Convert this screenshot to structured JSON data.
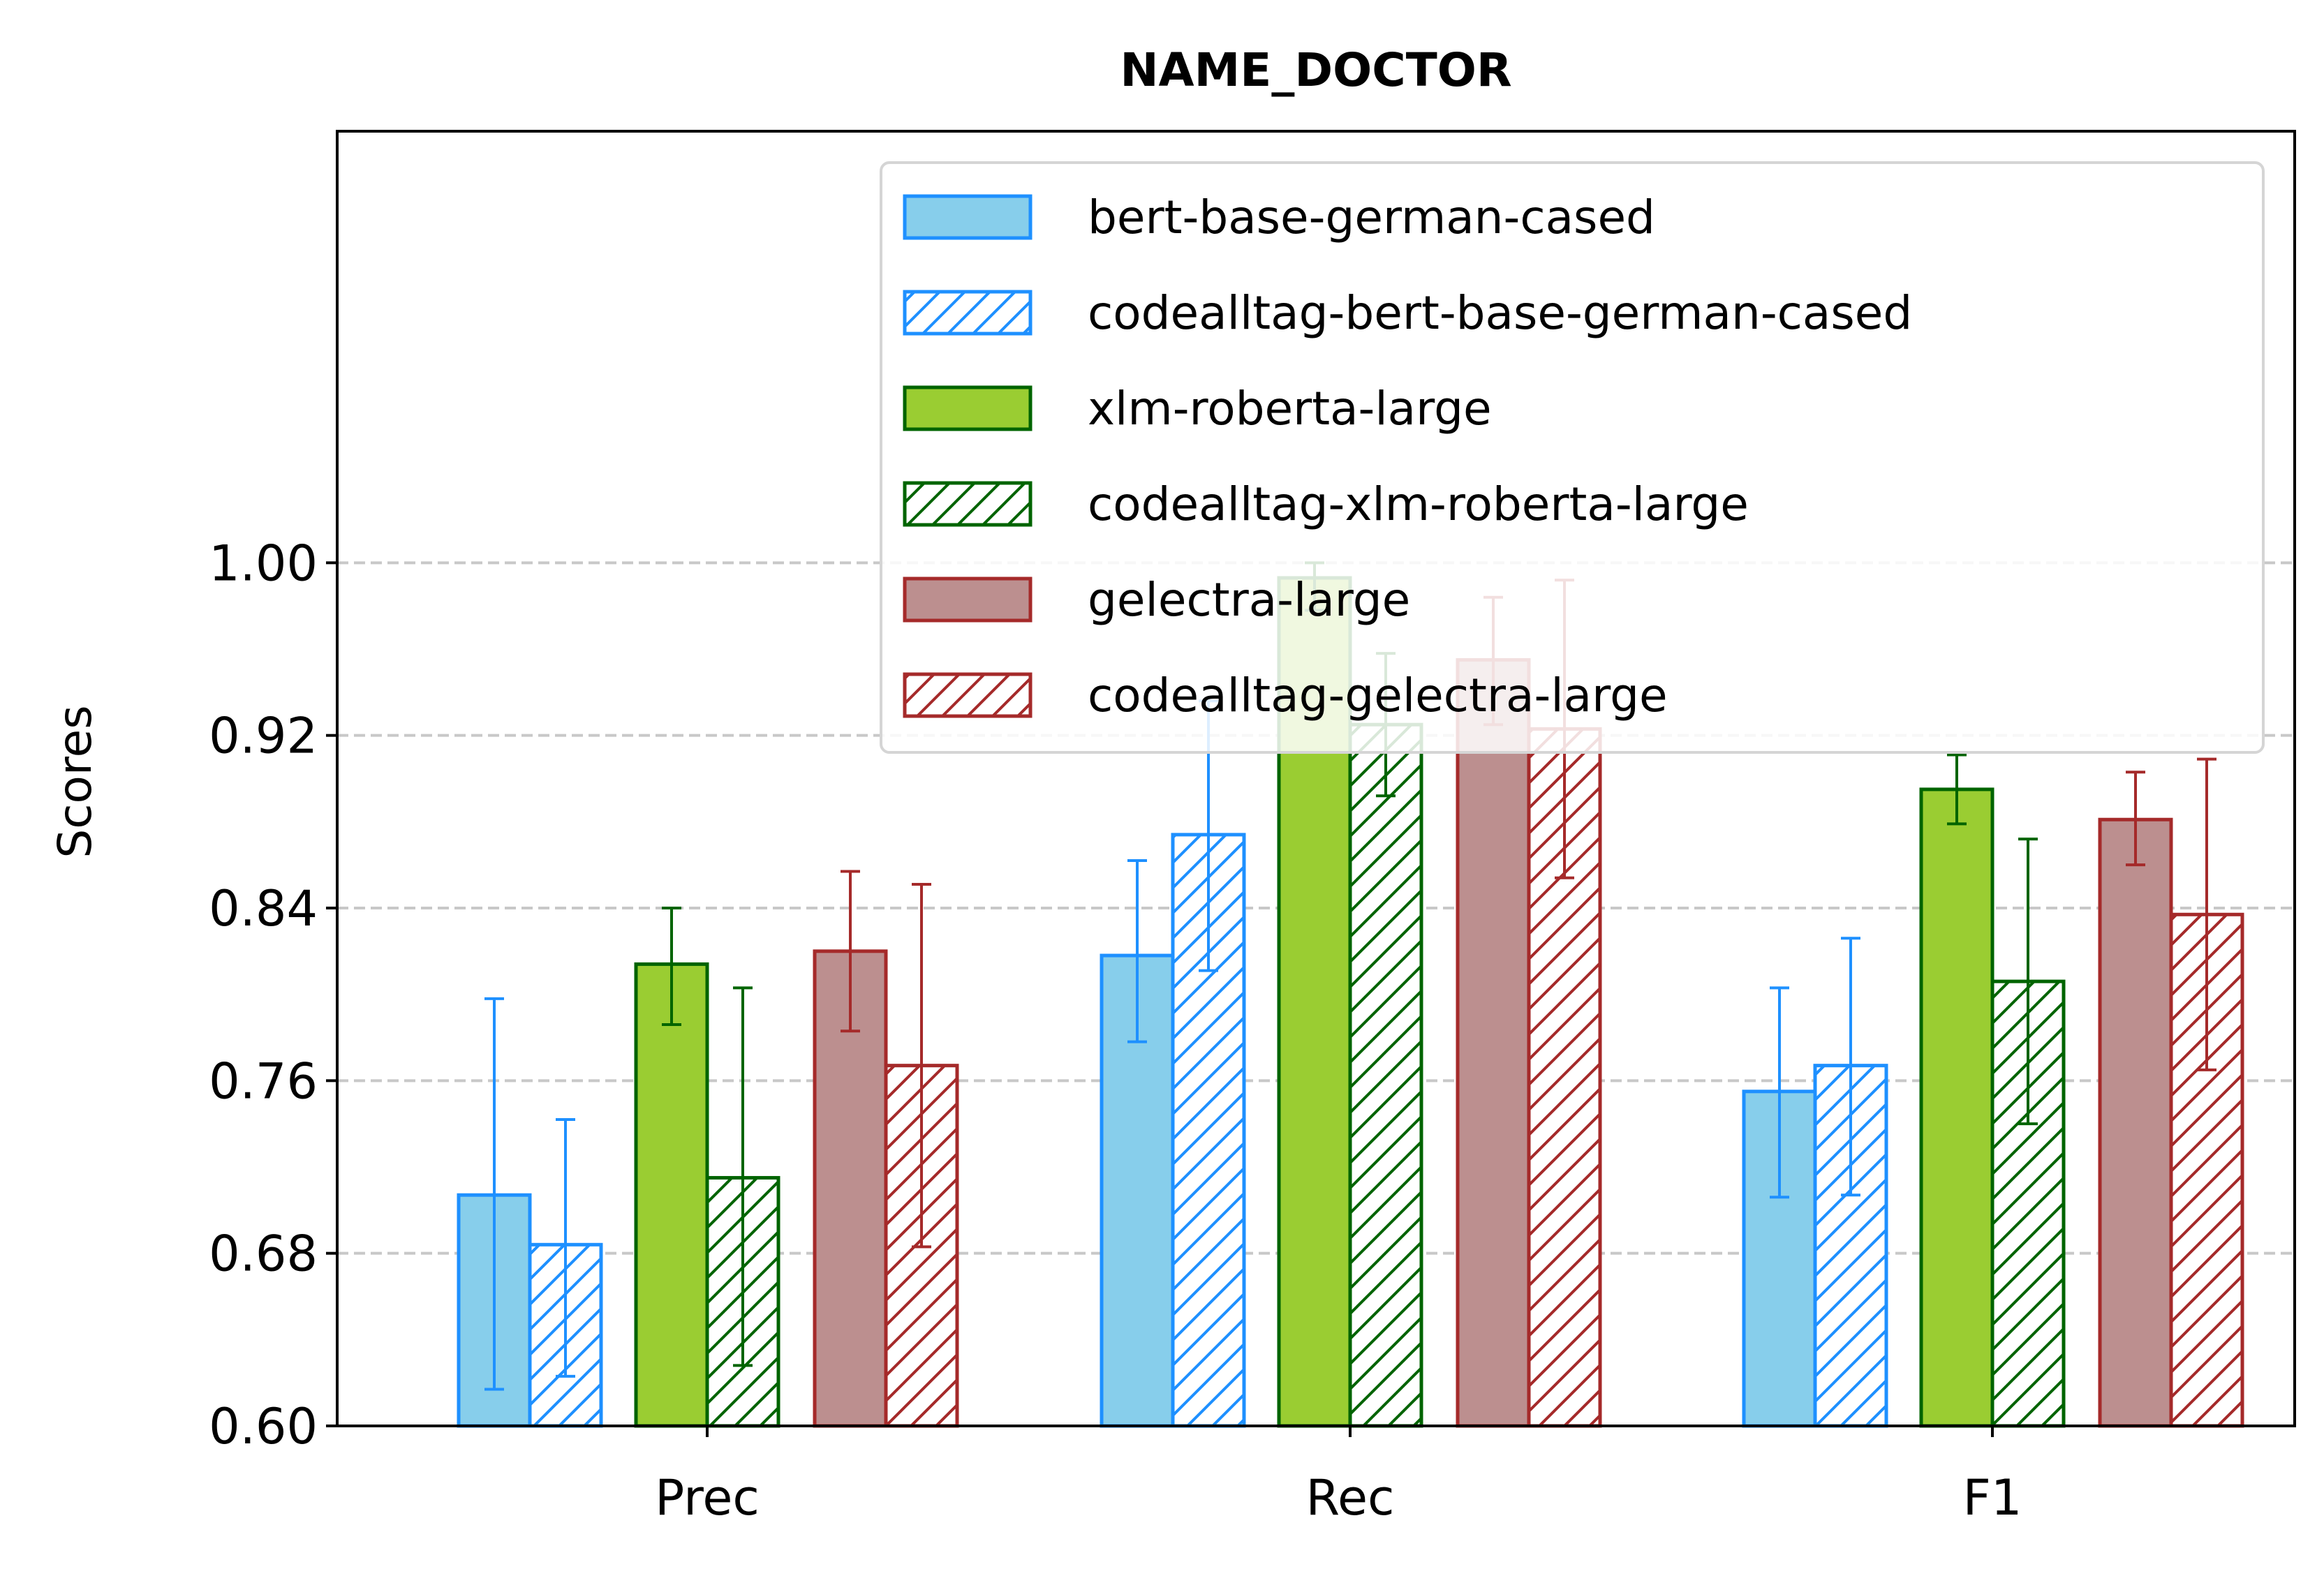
{
  "chart_data": {
    "type": "bar",
    "title": "NAME_DOCTOR",
    "xlabel": "",
    "ylabel": "Scores",
    "ylim": [
      0.6,
      1.2
    ],
    "yticks": [
      "0.60",
      "0.68",
      "0.76",
      "0.84",
      "0.92",
      "1.00"
    ],
    "ytick_values": [
      0.6,
      0.68,
      0.76,
      0.84,
      0.92,
      1.0
    ],
    "categories": [
      "Prec",
      "Rec",
      "F1"
    ],
    "grid": "horizontal dashed",
    "legend_position": "upper-right",
    "series": [
      {
        "name": "bert-base-german-cased",
        "values": [
          0.707,
          0.818,
          0.755
        ],
        "err_low": [
          0.617,
          0.778,
          0.706
        ],
        "err_high": [
          0.798,
          0.862,
          0.803
        ],
        "fill": "#87CEEB",
        "edge": "#1E90FF",
        "hatch": false
      },
      {
        "name": "codealltag-bert-base-german-cased",
        "values": [
          0.684,
          0.874,
          0.767
        ],
        "err_low": [
          0.623,
          0.811,
          0.707
        ],
        "err_high": [
          0.742,
          0.936,
          0.826
        ],
        "fill": "#ffffff",
        "edge": "#1E90FF",
        "hatch": true
      },
      {
        "name": "xlm-roberta-large",
        "values": [
          0.814,
          0.993,
          0.895
        ],
        "err_low": [
          0.786,
          0.978,
          0.879
        ],
        "err_high": [
          0.84,
          1.0,
          0.911
        ],
        "fill": "#9ACD32",
        "edge": "#006400",
        "hatch": false
      },
      {
        "name": "codealltag-xlm-roberta-large",
        "values": [
          0.715,
          0.925,
          0.806
        ],
        "err_low": [
          0.628,
          0.892,
          0.74
        ],
        "err_high": [
          0.803,
          0.958,
          0.872
        ],
        "fill": "#ffffff",
        "edge": "#006400",
        "hatch": true
      },
      {
        "name": "gelectra-large",
        "values": [
          0.82,
          0.955,
          0.881
        ],
        "err_low": [
          0.783,
          0.925,
          0.86
        ],
        "err_high": [
          0.857,
          0.984,
          0.903
        ],
        "fill": "#BC8F8F",
        "edge": "#A52A2A",
        "hatch": false
      },
      {
        "name": "codealltag-gelectra-large",
        "values": [
          0.767,
          0.923,
          0.837
        ],
        "err_low": [
          0.683,
          0.854,
          0.765
        ],
        "err_high": [
          0.851,
          0.992,
          0.909
        ],
        "fill": "#ffffff",
        "edge": "#A52A2A",
        "hatch": true
      }
    ]
  }
}
